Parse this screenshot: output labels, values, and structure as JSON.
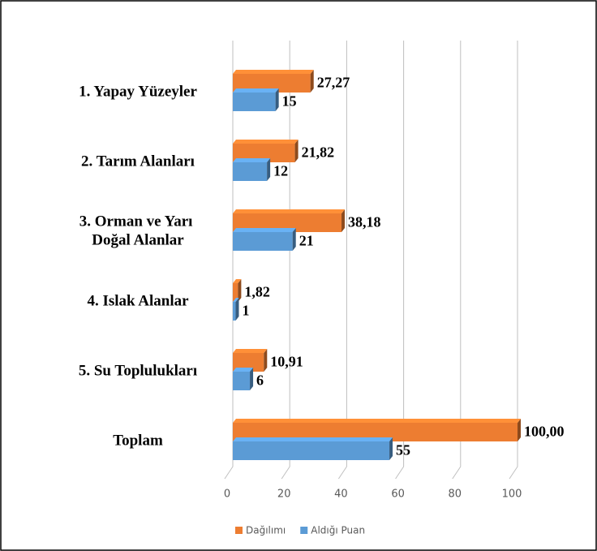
{
  "chart_data": {
    "type": "bar",
    "orientation": "horizontal",
    "categories": [
      "1. Yapay Yüzeyler",
      "2. Tarım Alanları",
      "3. Orman ve Yarı Doğal Alanlar",
      "4. Islak Alanlar",
      "5. Su Toplulukları",
      "Toplam"
    ],
    "series": [
      {
        "name": "Dağılımı",
        "color": "#ed7d31",
        "values": [
          27.27,
          21.82,
          38.18,
          1.82,
          10.91,
          100
        ],
        "value_labels": [
          "27,27",
          "21,82",
          "38,18",
          "1,82",
          "10,91",
          "100,00"
        ]
      },
      {
        "name": "Aldığı Puan",
        "color": "#5b9bd5",
        "values": [
          15,
          12,
          21,
          1,
          6,
          55
        ]
      }
    ],
    "xlim": [
      0,
      100
    ],
    "xticks": [
      0,
      20,
      40,
      60,
      80,
      100
    ],
    "grid": true,
    "legend": "bottom"
  }
}
